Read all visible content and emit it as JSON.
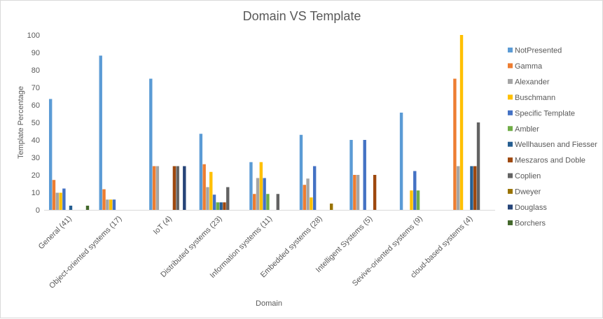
{
  "chart_data": {
    "type": "bar",
    "title": "Domain VS Template",
    "xlabel": "Domain",
    "ylabel": "Template Percentage",
    "ylim": [
      0,
      100
    ],
    "yticks": [
      0,
      10,
      20,
      30,
      40,
      50,
      60,
      70,
      80,
      90,
      100
    ],
    "grid": false,
    "legend": "right",
    "categories": [
      "General (41)",
      "Object-oriented systems (17)",
      "IoT (4)",
      "Distributed systems (23)",
      "Information systems (11)",
      "Embedded systems (28)",
      "Intelligent Systems (5)",
      "Sevive-oriented systems (9)",
      "cloud-based systems (4)"
    ],
    "series": [
      {
        "name": "NotPresented",
        "color": "#5B9BD5",
        "values": [
          63.4,
          88.2,
          75,
          43.5,
          27.3,
          42.9,
          40,
          55.6,
          0
        ]
      },
      {
        "name": "Gamma",
        "color": "#ED7D31",
        "values": [
          17.1,
          11.8,
          25,
          26.1,
          9.1,
          14.3,
          20,
          0,
          75
        ]
      },
      {
        "name": "Alexander",
        "color": "#A5A5A5",
        "values": [
          9.8,
          5.9,
          25,
          13,
          18.2,
          17.9,
          20,
          0,
          25
        ]
      },
      {
        "name": "Buschmann",
        "color": "#FFC000",
        "values": [
          9.8,
          5.9,
          0,
          21.7,
          27.3,
          7.1,
          0,
          11.1,
          100
        ]
      },
      {
        "name": "Specific Template",
        "color": "#4472C4",
        "values": [
          12.2,
          5.9,
          0,
          8.7,
          18.2,
          25,
          40,
          22.2,
          0
        ]
      },
      {
        "name": "Ambler",
        "color": "#70AD47",
        "values": [
          0,
          0,
          0,
          4.3,
          9.1,
          0,
          0,
          11.1,
          0
        ]
      },
      {
        "name": "Wellhausen and Fiesser",
        "color": "#255E91",
        "values": [
          2.4,
          0,
          0,
          4.3,
          0,
          0,
          0,
          0,
          25
        ]
      },
      {
        "name": "Meszaros and Doble",
        "color": "#9E480E",
        "values": [
          0,
          0,
          25,
          4.3,
          0,
          0,
          20,
          0,
          25
        ]
      },
      {
        "name": "Coplien",
        "color": "#636363",
        "values": [
          0,
          0,
          25,
          13,
          9.1,
          0,
          0,
          0,
          50
        ]
      },
      {
        "name": "Dweyer",
        "color": "#997300",
        "values": [
          0,
          0,
          0,
          0,
          0,
          3.6,
          0,
          0,
          0
        ]
      },
      {
        "name": "Douglass",
        "color": "#264478",
        "values": [
          0,
          0,
          25,
          0,
          0,
          0,
          0,
          0,
          0
        ]
      },
      {
        "name": "Borchers",
        "color": "#43682B",
        "values": [
          2.4,
          0,
          0,
          0,
          0,
          0,
          0,
          0,
          0
        ]
      }
    ]
  }
}
